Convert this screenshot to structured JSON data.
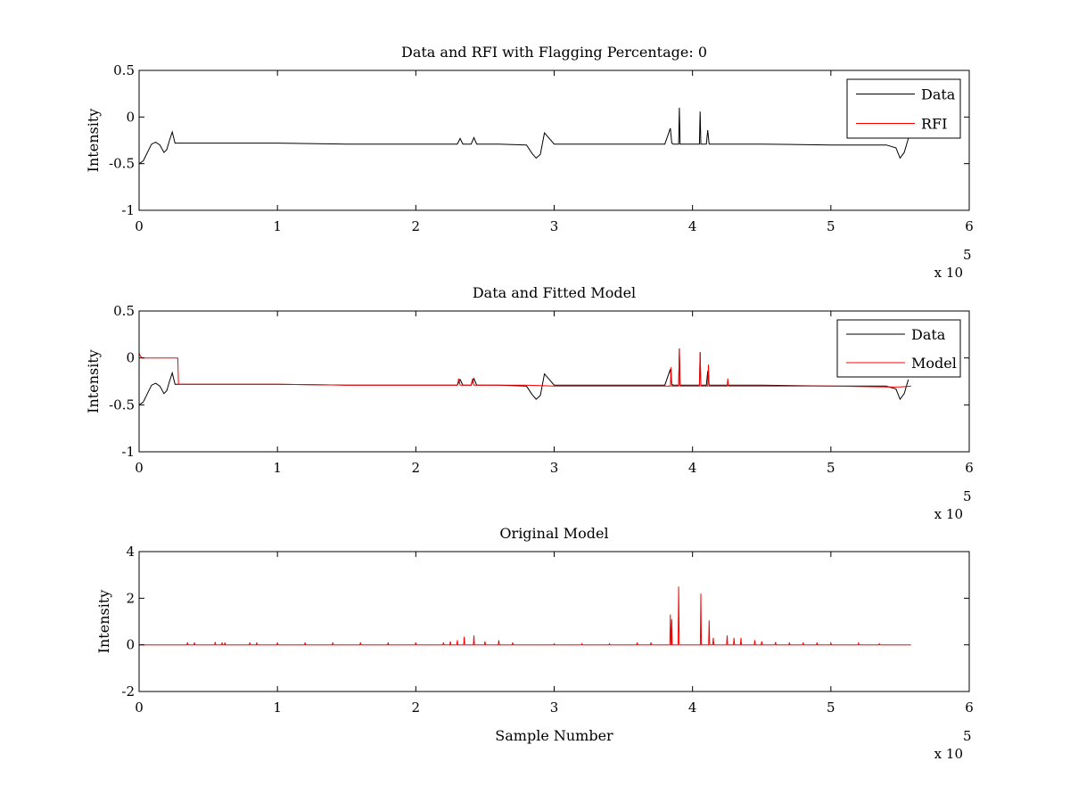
{
  "chart_data": [
    {
      "type": "line",
      "title": "Data and RFI with Flagging Percentage: 0",
      "xlabel": "",
      "ylabel": "Intensity",
      "xlim": [
        0,
        6
      ],
      "ylim": [
        -1,
        0.5
      ],
      "x_ticks": [
        "0",
        "1",
        "2",
        "3",
        "4",
        "5",
        "6"
      ],
      "y_ticks": [
        "-1",
        "-0.5",
        "0",
        "0.5"
      ],
      "x_multiplier": "x 10",
      "x_multiplier_exponent": "5",
      "legend_position": "top-right",
      "series": [
        {
          "name": "Data",
          "color": "#000000",
          "x": [
            0,
            0.03,
            0.06,
            0.09,
            0.12,
            0.15,
            0.18,
            0.2,
            0.22,
            0.24,
            0.26,
            0.3,
            0.5,
            1.0,
            1.5,
            2.0,
            2.3,
            2.32,
            2.34,
            2.4,
            2.42,
            2.44,
            2.6,
            2.8,
            2.84,
            2.87,
            2.9,
            2.93,
            3.0,
            3.5,
            3.8,
            3.84,
            3.85,
            3.86,
            3.9,
            3.905,
            3.91,
            4.0,
            4.05,
            4.055,
            4.06,
            4.1,
            4.11,
            4.12,
            4.2,
            4.5,
            5.0,
            5.4,
            5.47,
            5.5,
            5.53,
            5.56
          ],
          "y": [
            -0.5,
            -0.47,
            -0.38,
            -0.29,
            -0.27,
            -0.3,
            -0.38,
            -0.35,
            -0.25,
            -0.16,
            -0.28,
            -0.28,
            -0.28,
            -0.28,
            -0.29,
            -0.29,
            -0.29,
            -0.23,
            -0.29,
            -0.29,
            -0.22,
            -0.29,
            -0.29,
            -0.3,
            -0.39,
            -0.44,
            -0.4,
            -0.17,
            -0.29,
            -0.29,
            -0.29,
            -0.12,
            -0.28,
            -0.29,
            -0.29,
            0.1,
            -0.29,
            -0.29,
            -0.29,
            0.06,
            -0.29,
            -0.29,
            -0.14,
            -0.29,
            -0.29,
            -0.29,
            -0.3,
            -0.3,
            -0.33,
            -0.44,
            -0.38,
            -0.23
          ]
        },
        {
          "name": "RFI",
          "color": "#ff0000",
          "x": [],
          "y": []
        }
      ]
    },
    {
      "type": "line",
      "title": "Data and Fitted Model",
      "xlabel": "",
      "ylabel": "Intensity",
      "xlim": [
        0,
        6
      ],
      "ylim": [
        -1,
        0.5
      ],
      "x_ticks": [
        "0",
        "1",
        "2",
        "3",
        "4",
        "5",
        "6"
      ],
      "y_ticks": [
        "-1",
        "-0.5",
        "0",
        "0.5"
      ],
      "x_multiplier": "x 10",
      "x_multiplier_exponent": "5",
      "legend_position": "top-right",
      "series": [
        {
          "name": "Data",
          "color": "#000000",
          "x": [
            0,
            0.03,
            0.06,
            0.09,
            0.12,
            0.15,
            0.18,
            0.2,
            0.22,
            0.24,
            0.26,
            0.3,
            0.5,
            1.0,
            1.5,
            2.0,
            2.3,
            2.32,
            2.34,
            2.4,
            2.42,
            2.44,
            2.6,
            2.8,
            2.84,
            2.87,
            2.9,
            2.93,
            3.0,
            3.5,
            3.8,
            3.84,
            3.85,
            3.86,
            3.9,
            3.905,
            3.91,
            4.0,
            4.05,
            4.055,
            4.06,
            4.1,
            4.11,
            4.12,
            4.2,
            4.5,
            5.0,
            5.4,
            5.47,
            5.5,
            5.53,
            5.56
          ],
          "y": [
            -0.5,
            -0.47,
            -0.38,
            -0.29,
            -0.27,
            -0.3,
            -0.38,
            -0.35,
            -0.25,
            -0.16,
            -0.28,
            -0.28,
            -0.28,
            -0.28,
            -0.29,
            -0.29,
            -0.29,
            -0.23,
            -0.29,
            -0.29,
            -0.22,
            -0.29,
            -0.29,
            -0.3,
            -0.39,
            -0.44,
            -0.4,
            -0.17,
            -0.29,
            -0.29,
            -0.29,
            -0.12,
            -0.28,
            -0.29,
            -0.29,
            0.1,
            -0.29,
            -0.29,
            -0.29,
            0.06,
            -0.29,
            -0.29,
            -0.14,
            -0.29,
            -0.29,
            -0.29,
            -0.3,
            -0.3,
            -0.33,
            -0.44,
            -0.38,
            -0.23
          ]
        },
        {
          "name": "Model",
          "color": "#ff0000",
          "x": [
            0,
            0.01,
            0.02,
            0.04,
            0.28,
            0.285,
            0.29,
            0.5,
            1.0,
            1.5,
            2.0,
            2.3,
            2.31,
            2.32,
            2.4,
            2.41,
            2.42,
            2.6,
            2.8,
            3.0,
            3.5,
            3.8,
            3.84,
            3.845,
            3.85,
            3.9,
            3.905,
            3.91,
            4.05,
            4.055,
            4.06,
            4.11,
            4.115,
            4.12,
            4.25,
            4.255,
            4.26,
            4.5,
            5.0,
            5.4,
            5.5,
            5.58
          ],
          "y": [
            0.05,
            0.02,
            0.0,
            0.0,
            0.0,
            -0.28,
            -0.28,
            -0.28,
            -0.28,
            -0.29,
            -0.29,
            -0.29,
            -0.22,
            -0.29,
            -0.29,
            -0.22,
            -0.29,
            -0.29,
            -0.29,
            -0.3,
            -0.3,
            -0.3,
            -0.3,
            -0.1,
            -0.3,
            -0.3,
            0.1,
            -0.3,
            -0.3,
            0.06,
            -0.3,
            -0.3,
            -0.07,
            -0.3,
            -0.3,
            -0.22,
            -0.3,
            -0.3,
            -0.3,
            -0.31,
            -0.31,
            -0.3
          ]
        }
      ]
    },
    {
      "type": "line",
      "title": "Original Model",
      "xlabel": "Sample Number",
      "ylabel": "Intensity",
      "xlim": [
        0,
        6
      ],
      "ylim": [
        -2,
        4
      ],
      "x_ticks": [
        "0",
        "1",
        "2",
        "3",
        "4",
        "5",
        "6"
      ],
      "y_ticks": [
        "-2",
        "0",
        "2",
        "4"
      ],
      "x_multiplier": "x 10",
      "x_multiplier_exponent": "5",
      "series": [
        {
          "color": "#ff0000",
          "baseline": 0,
          "x_end": 5.58,
          "spikes_x": [
            0.35,
            0.4,
            0.55,
            0.6,
            0.62,
            0.8,
            0.85,
            1.0,
            1.2,
            1.4,
            1.6,
            1.8,
            2.0,
            2.2,
            2.25,
            2.3,
            2.35,
            2.42,
            2.5,
            2.6,
            2.7,
            3.0,
            3.2,
            3.4,
            3.6,
            3.7,
            3.84,
            3.85,
            3.9,
            4.06,
            4.12,
            4.15,
            4.25,
            4.3,
            4.35,
            4.45,
            4.5,
            4.6,
            4.7,
            4.8,
            4.9,
            5.0,
            5.2,
            5.35
          ],
          "spikes_y": [
            0.1,
            0.1,
            0.12,
            0.1,
            0.1,
            0.1,
            0.1,
            0.1,
            0.1,
            0.1,
            0.1,
            0.1,
            0.1,
            0.1,
            0.15,
            0.2,
            0.35,
            0.4,
            0.15,
            0.2,
            0.1,
            0.05,
            0.05,
            0.05,
            0.1,
            0.1,
            1.3,
            1.1,
            2.5,
            2.2,
            1.05,
            0.3,
            0.4,
            0.3,
            0.3,
            0.2,
            0.15,
            0.12,
            0.1,
            0.1,
            0.1,
            0.08,
            0.08,
            0.05
          ]
        }
      ]
    }
  ]
}
